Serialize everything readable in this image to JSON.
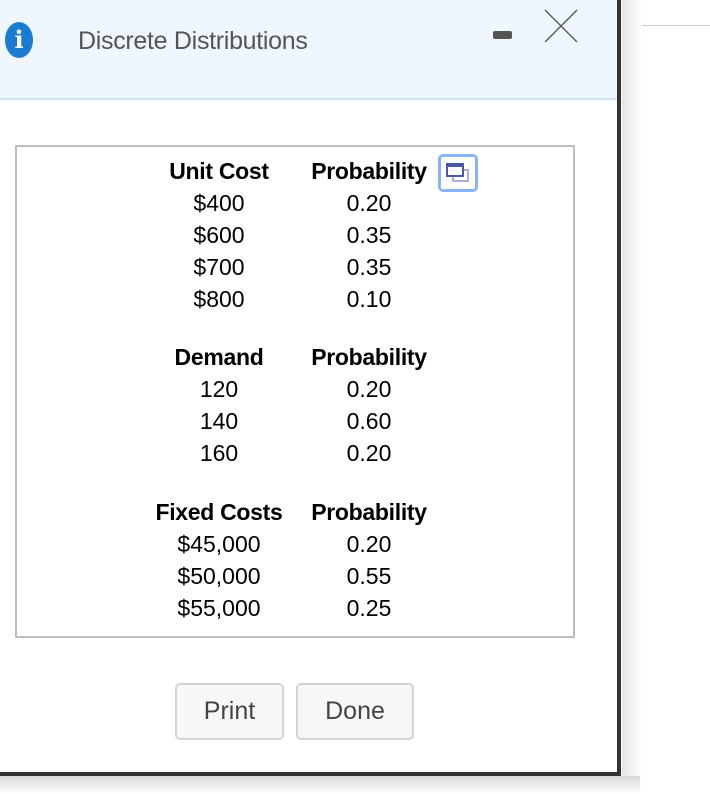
{
  "dialog": {
    "title": "Discrete Distributions",
    "icons": {
      "info": "info-icon",
      "minimize": "minimize-icon",
      "close": "close-icon",
      "expand": "expand-window-icon"
    }
  },
  "tables": [
    {
      "headers": [
        "Unit Cost",
        "Probability"
      ],
      "rows": [
        [
          "$400",
          "0.20"
        ],
        [
          "$600",
          "0.35"
        ],
        [
          "$700",
          "0.35"
        ],
        [
          "$800",
          "0.10"
        ]
      ]
    },
    {
      "headers": [
        "Demand",
        "Probability"
      ],
      "rows": [
        [
          "120",
          "0.20"
        ],
        [
          "140",
          "0.60"
        ],
        [
          "160",
          "0.20"
        ]
      ]
    },
    {
      "headers": [
        "Fixed Costs",
        "Probability"
      ],
      "rows": [
        [
          "$45,000",
          "0.20"
        ],
        [
          "$50,000",
          "0.55"
        ],
        [
          "$55,000",
          "0.25"
        ]
      ]
    }
  ],
  "buttons": {
    "print": "Print",
    "done": "Done"
  },
  "colors": {
    "header_bg": "#f0f6fe",
    "info_icon": "#1a7bd0",
    "expand_border": "#8ab4f8"
  }
}
